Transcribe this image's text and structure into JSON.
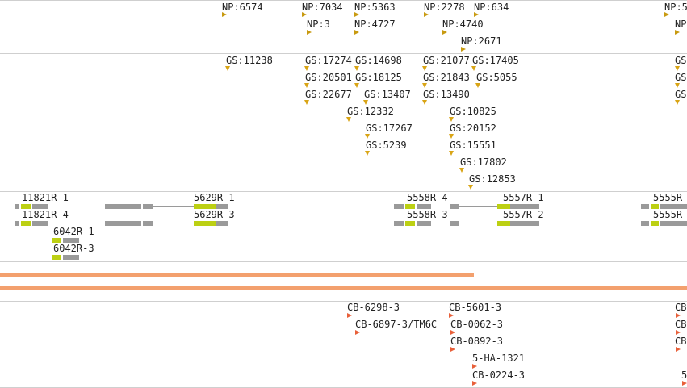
{
  "colors": {
    "np": "#c89a10",
    "gs": "#d9a516",
    "cb": "#e8603a",
    "gene_grey": "#9a9a9a",
    "gene_yellow": "#bcd013",
    "bar": "#f3a06e",
    "divider": "#cfcfcf"
  },
  "np_track": {
    "labels": [
      "NP:6574",
      "NP:7034",
      "NP:3",
      "NP:5363",
      "NP:4727",
      "NP:2278",
      "NP:4740",
      "NP:634",
      "NP:2671",
      "NP:5",
      "NP"
    ]
  },
  "gs_track": {
    "labels": [
      "GS:11238",
      "GS:17274",
      "GS:20501",
      "GS:22677",
      "GS:14698",
      "GS:18125",
      "GS:13407",
      "GS:12332",
      "GS:17267",
      "GS:5239",
      "GS:21077",
      "GS:21843",
      "GS:13490",
      "GS:17405",
      "GS:5055",
      "GS:10825",
      "GS:20152",
      "GS:15551",
      "GS:17802",
      "GS:12853",
      "GS",
      "GS",
      "GS"
    ]
  },
  "gene_track": {
    "labels": [
      "11821R-1",
      "11821R-4",
      "6042R-1",
      "6042R-3",
      "5629R-1",
      "5629R-3",
      "5558R-4",
      "5558R-3",
      "5557R-1",
      "5557R-2",
      "5555R-",
      "5555R-"
    ]
  },
  "cb_track": {
    "labels": [
      "CB-6298-3",
      "CB-6897-3/TM6C",
      "CB-5601-3",
      "CB-0062-3",
      "CB-0892-3",
      "5-HA-1321",
      "CB-0224-3",
      "CB",
      "CB",
      "CB",
      "5"
    ]
  }
}
